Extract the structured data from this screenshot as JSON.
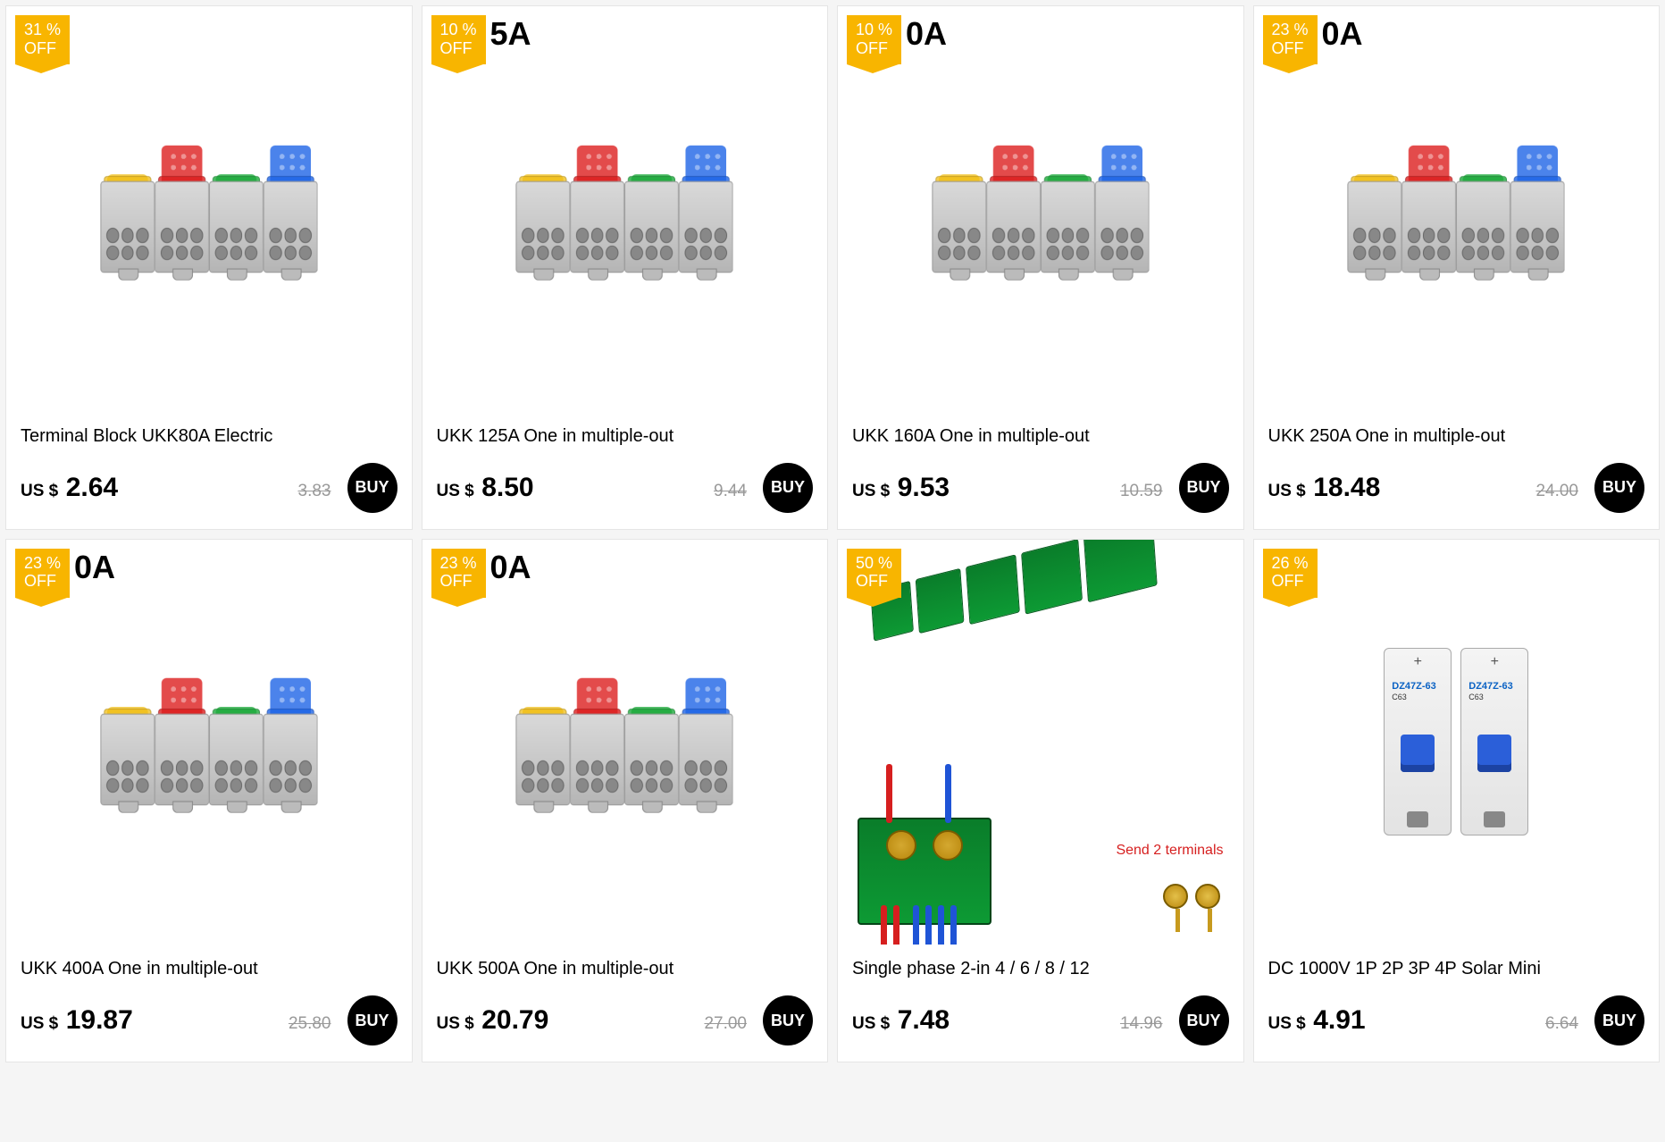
{
  "currency": "US $",
  "buy_label": "BUY",
  "off_label": "OFF",
  "products": [
    {
      "discount": "31  %",
      "corner": "",
      "title": "Terminal Block UKK80A  Electric",
      "price": "2.64",
      "old": "3.83",
      "image": "tblocks"
    },
    {
      "discount": "10  %",
      "corner": "5A",
      "title": "UKK 125A One in multiple-out",
      "price": "8.50",
      "old": "9.44",
      "image": "tblocks"
    },
    {
      "discount": "10  %",
      "corner": "0A",
      "title": "UKK 160A One in multiple-out",
      "price": "9.53",
      "old": "10.59",
      "image": "tblocks"
    },
    {
      "discount": "23  %",
      "corner": "0A",
      "title": "UKK 250A One in multiple-out",
      "price": "18.48",
      "old": "24.00",
      "image": "tblocks"
    },
    {
      "discount": "23  %",
      "corner": "0A",
      "title": "UKK 400A One in multiple-out",
      "price": "19.87",
      "old": "25.80",
      "image": "tblocks"
    },
    {
      "discount": "23  %",
      "corner": "0A",
      "title": "UKK 500A One in multiple-out",
      "price": "20.79",
      "old": "27.00",
      "image": "tblocks"
    },
    {
      "discount": "50  %",
      "corner": "",
      "title": "Single phase 2-in 4 / 6 / 8 / 12",
      "price": "7.48",
      "old": "14.96",
      "image": "junction",
      "send_label": "Send 2 terminals"
    },
    {
      "discount": "26  %",
      "corner": "",
      "title": "DC 1000V 1P 2P 3P 4P Solar Mini",
      "price": "4.91",
      "old": "6.64",
      "image": "breaker",
      "cb_label_line1": "DZ47Z-63",
      "cb_label_line2": "C63"
    }
  ],
  "colors": {
    "badge_bg": "#f8b500",
    "badge_text": "#ffffff",
    "card_border": "#e5e5e5",
    "buy_bg": "#000000",
    "buy_text": "#ffffff",
    "old_price": "#999999",
    "send_text": "#d61f1f"
  }
}
